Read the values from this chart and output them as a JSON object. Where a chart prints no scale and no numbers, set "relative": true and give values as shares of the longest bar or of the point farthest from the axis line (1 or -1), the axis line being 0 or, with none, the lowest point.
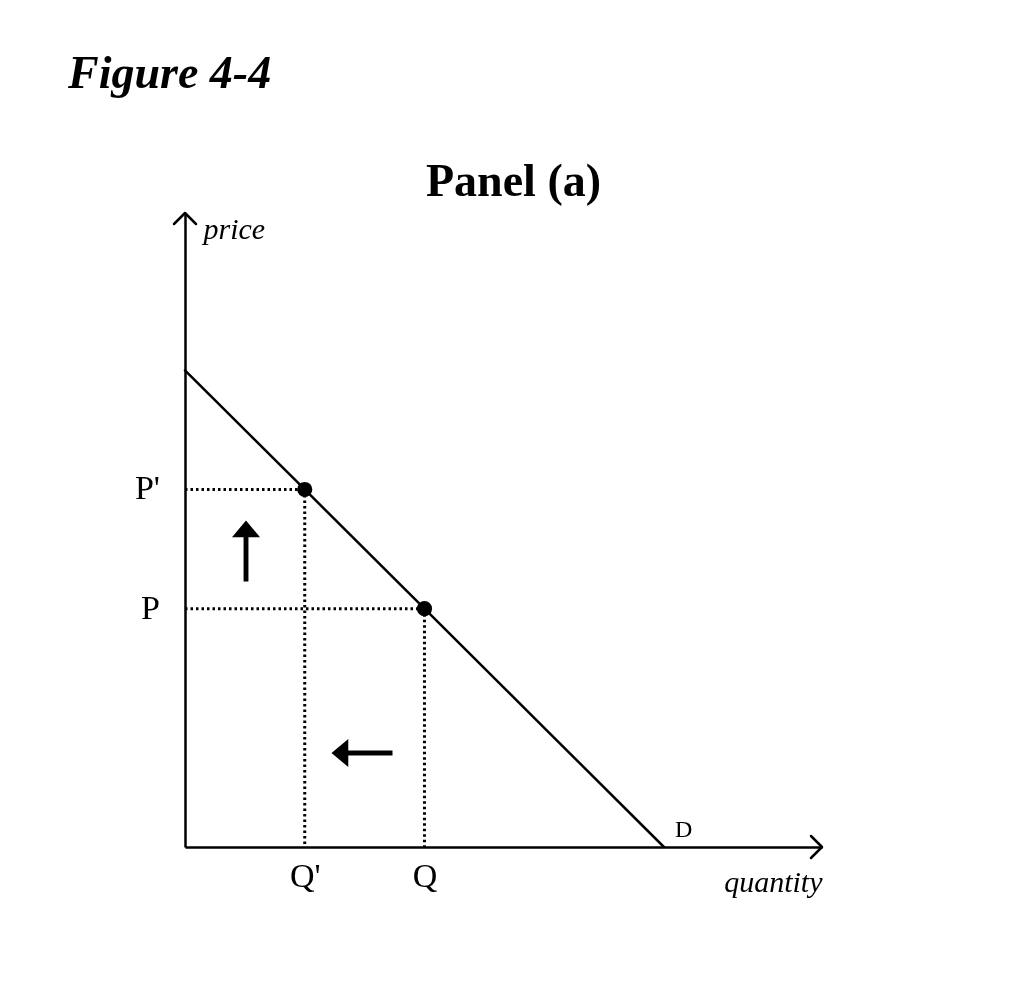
{
  "chart_data": {
    "type": "line",
    "title": "Figure 4-4",
    "subtitle": "Panel (a)",
    "xlabel": "quantity",
    "ylabel": "price",
    "relative": true,
    "ylim": [
      0,
      1.33
    ],
    "categories": [
      null,
      "Q'",
      "Q",
      null,
      null
    ],
    "series": [
      {
        "name": "D",
        "color": "#000000",
        "values": [
          1,
          0.75,
          0.5,
          0.25,
          0
        ]
      },
      {
        "type": "lollipop",
        "marker": "circle",
        "line_style": "dotted",
        "color": "#000000",
        "values": [
          null,
          0.75,
          0.5,
          null,
          null
        ]
      }
    ],
    "ref_lines": [
      {
        "axis": "y",
        "value": 0.75,
        "label": "P'",
        "line_style": "dotted",
        "color": "#000000"
      },
      {
        "axis": "y",
        "value": 0.5,
        "label": "P",
        "line_style": "dotted",
        "color": "#000000"
      }
    ]
  }
}
